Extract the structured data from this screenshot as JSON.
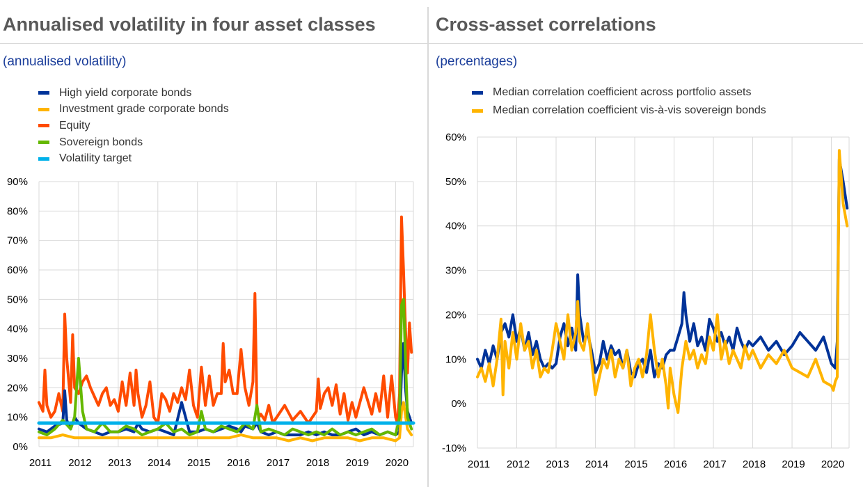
{
  "colors": {
    "high_yield": "#003399",
    "investment_grade": "#ffb400",
    "equity": "#ff4b00",
    "sovereign": "#65b800",
    "target": "#00b1ea",
    "median_across": "#003399",
    "median_vs_sovereign": "#ffb400",
    "grid": "#d9d9d9"
  },
  "chart_data": [
    {
      "type": "line",
      "title": "Annualised volatility in four asset classes",
      "subtitle": "(annualised volatility)",
      "xlabel": "",
      "ylabel": "",
      "xlim": [
        2011.0,
        2020.45
      ],
      "ylim": [
        0,
        90
      ],
      "x_ticks": [
        "2011",
        "2012",
        "2013",
        "2014",
        "2015",
        "2016",
        "2017",
        "2018",
        "2019",
        "2020"
      ],
      "y_ticks": [
        "0%",
        "10%",
        "20%",
        "30%",
        "40%",
        "50%",
        "60%",
        "70%",
        "80%",
        "90%"
      ],
      "grid": true,
      "legend_position": "top-left",
      "legend": [
        "High yield corporate bonds",
        "Investment grade corporate bonds",
        "Equity",
        "Sovereign bonds",
        "Volatility target"
      ],
      "series": [
        {
          "name": "Equity",
          "x": [
            2011.0,
            2011.1,
            2011.15,
            2011.2,
            2011.3,
            2011.4,
            2011.5,
            2011.6,
            2011.65,
            2011.7,
            2011.8,
            2011.85,
            2011.9,
            2012.0,
            2012.1,
            2012.2,
            2012.3,
            2012.4,
            2012.5,
            2012.6,
            2012.7,
            2012.8,
            2012.9,
            2013.0,
            2013.1,
            2013.2,
            2013.3,
            2013.4,
            2013.45,
            2013.5,
            2013.6,
            2013.7,
            2013.8,
            2013.9,
            2014.0,
            2014.1,
            2014.2,
            2014.3,
            2014.4,
            2014.5,
            2014.6,
            2014.7,
            2014.8,
            2014.9,
            2015.0,
            2015.1,
            2015.2,
            2015.3,
            2015.4,
            2015.5,
            2015.6,
            2015.65,
            2015.7,
            2015.8,
            2015.9,
            2016.0,
            2016.1,
            2016.2,
            2016.3,
            2016.4,
            2016.45,
            2016.5,
            2016.55,
            2016.6,
            2016.7,
            2016.8,
            2016.9,
            2017.0,
            2017.2,
            2017.4,
            2017.6,
            2017.8,
            2018.0,
            2018.05,
            2018.1,
            2018.2,
            2018.3,
            2018.4,
            2018.5,
            2018.6,
            2018.7,
            2018.8,
            2018.9,
            2019.0,
            2019.2,
            2019.4,
            2019.5,
            2019.6,
            2019.7,
            2019.8,
            2019.9,
            2020.0,
            2020.05,
            2020.1,
            2020.15,
            2020.2,
            2020.25,
            2020.3,
            2020.35,
            2020.4
          ],
          "values": [
            15,
            12,
            26,
            14,
            10,
            12,
            18,
            12,
            45,
            30,
            15,
            38,
            20,
            18,
            22,
            24,
            20,
            17,
            14,
            18,
            20,
            14,
            16,
            12,
            22,
            14,
            25,
            14,
            26,
            18,
            10,
            14,
            22,
            10,
            8,
            18,
            16,
            12,
            18,
            15,
            20,
            16,
            26,
            14,
            10,
            27,
            14,
            24,
            14,
            18,
            18,
            35,
            22,
            26,
            18,
            18,
            33,
            20,
            14,
            22,
            52,
            14,
            10,
            11,
            9,
            14,
            8,
            10,
            14,
            9,
            12,
            8,
            12,
            23,
            13,
            18,
            20,
            14,
            21,
            11,
            18,
            9,
            15,
            10,
            20,
            11,
            18,
            12,
            24,
            10,
            24,
            10,
            8,
            18,
            78,
            60,
            40,
            25,
            42,
            32
          ]
        },
        {
          "name": "High yield corporate bonds",
          "x": [
            2011.0,
            2011.2,
            2011.4,
            2011.6,
            2011.65,
            2011.7,
            2011.8,
            2011.9,
            2012.0,
            2012.2,
            2012.4,
            2012.6,
            2012.8,
            2013.0,
            2013.2,
            2013.4,
            2013.5,
            2013.6,
            2013.8,
            2014.0,
            2014.2,
            2014.4,
            2014.6,
            2014.8,
            2015.0,
            2015.2,
            2015.4,
            2015.6,
            2015.8,
            2016.0,
            2016.1,
            2016.2,
            2016.4,
            2016.5,
            2016.6,
            2016.8,
            2017.0,
            2017.2,
            2017.4,
            2017.6,
            2017.8,
            2018.0,
            2018.2,
            2018.4,
            2018.6,
            2018.8,
            2019.0,
            2019.2,
            2019.4,
            2019.6,
            2019.8,
            2020.0,
            2020.1,
            2020.15,
            2020.2,
            2020.25,
            2020.3,
            2020.4
          ],
          "values": [
            6,
            5,
            7,
            8,
            19,
            9,
            6,
            10,
            8,
            6,
            5,
            4,
            5,
            5,
            6,
            5,
            8,
            6,
            5,
            6,
            5,
            4,
            15,
            5,
            5,
            6,
            5,
            6,
            7,
            6,
            5,
            7,
            6,
            8,
            5,
            4,
            5,
            4,
            4,
            4,
            5,
            4,
            5,
            4,
            4,
            5,
            6,
            4,
            5,
            4,
            5,
            4,
            5,
            25,
            35,
            20,
            12,
            8
          ]
        },
        {
          "name": "Investment grade corporate bonds",
          "x": [
            2011.0,
            2011.3,
            2011.6,
            2011.9,
            2012.2,
            2012.5,
            2012.8,
            2013.1,
            2013.4,
            2013.7,
            2014.0,
            2014.3,
            2014.6,
            2014.9,
            2015.2,
            2015.5,
            2015.8,
            2016.1,
            2016.4,
            2016.7,
            2017.0,
            2017.3,
            2017.6,
            2017.9,
            2018.2,
            2018.5,
            2018.8,
            2019.1,
            2019.4,
            2019.7,
            2020.0,
            2020.1,
            2020.15,
            2020.2,
            2020.3,
            2020.4
          ],
          "values": [
            3,
            3,
            4,
            3,
            3,
            3,
            3,
            3,
            3,
            3,
            3,
            3,
            3,
            3,
            3,
            3,
            3,
            4,
            3,
            3,
            3,
            2,
            3,
            2,
            3,
            3,
            3,
            2,
            3,
            3,
            2,
            3,
            12,
            15,
            6,
            4
          ]
        },
        {
          "name": "Sovereign bonds",
          "x": [
            2011.0,
            2011.2,
            2011.4,
            2011.6,
            2011.8,
            2011.9,
            2012.0,
            2012.1,
            2012.2,
            2012.4,
            2012.6,
            2012.8,
            2013.0,
            2013.2,
            2013.4,
            2013.6,
            2013.8,
            2014.0,
            2014.2,
            2014.4,
            2014.6,
            2014.8,
            2015.0,
            2015.1,
            2015.2,
            2015.4,
            2015.6,
            2015.8,
            2016.0,
            2016.2,
            2016.4,
            2016.5,
            2016.6,
            2016.8,
            2017.0,
            2017.2,
            2017.4,
            2017.6,
            2017.8,
            2018.0,
            2018.2,
            2018.4,
            2018.6,
            2018.8,
            2019.0,
            2019.2,
            2019.4,
            2019.6,
            2019.8,
            2020.0,
            2020.1,
            2020.15,
            2020.2,
            2020.25,
            2020.3,
            2020.4
          ],
          "values": [
            5,
            4,
            6,
            9,
            6,
            10,
            30,
            12,
            6,
            5,
            8,
            5,
            5,
            7,
            6,
            4,
            5,
            6,
            8,
            5,
            6,
            4,
            5,
            12,
            6,
            5,
            7,
            6,
            5,
            8,
            6,
            14,
            5,
            6,
            5,
            4,
            6,
            5,
            4,
            5,
            4,
            6,
            4,
            5,
            4,
            5,
            6,
            4,
            5,
            4,
            10,
            48,
            50,
            30,
            10,
            6
          ]
        },
        {
          "name": "Volatility target",
          "x": [
            2011.0,
            2020.45
          ],
          "values": [
            8,
            8
          ]
        }
      ]
    },
    {
      "type": "line",
      "title": "Cross-asset correlations",
      "subtitle": "(percentages)",
      "xlabel": "",
      "ylabel": "",
      "xlim": [
        2011.0,
        2020.45
      ],
      "ylim": [
        -10,
        60
      ],
      "x_ticks": [
        "2011",
        "2012",
        "2013",
        "2014",
        "2015",
        "2016",
        "2017",
        "2018",
        "2019",
        "2020"
      ],
      "y_ticks": [
        "-10%",
        "0%",
        "10%",
        "20%",
        "30%",
        "40%",
        "50%",
        "60%"
      ],
      "grid": true,
      "legend_position": "top-left",
      "legend": [
        "Median correlation coefficient across portfolio assets",
        "Median correlation coefficient vis-à-vis sovereign bonds"
      ],
      "series": [
        {
          "name": "Median correlation coefficient across portfolio assets",
          "x": [
            2011.0,
            2011.1,
            2011.2,
            2011.3,
            2011.4,
            2011.5,
            2011.6,
            2011.7,
            2011.8,
            2011.9,
            2012.0,
            2012.1,
            2012.2,
            2012.3,
            2012.4,
            2012.5,
            2012.6,
            2012.7,
            2012.8,
            2012.9,
            2013.0,
            2013.1,
            2013.2,
            2013.3,
            2013.4,
            2013.5,
            2013.55,
            2013.6,
            2013.7,
            2013.8,
            2013.9,
            2014.0,
            2014.1,
            2014.2,
            2014.3,
            2014.4,
            2014.5,
            2014.6,
            2014.7,
            2014.8,
            2014.9,
            2015.0,
            2015.1,
            2015.2,
            2015.3,
            2015.4,
            2015.5,
            2015.6,
            2015.7,
            2015.8,
            2015.9,
            2016.0,
            2016.1,
            2016.2,
            2016.25,
            2016.3,
            2016.4,
            2016.5,
            2016.6,
            2016.7,
            2016.8,
            2016.9,
            2017.0,
            2017.1,
            2017.2,
            2017.3,
            2017.4,
            2017.5,
            2017.6,
            2017.7,
            2017.8,
            2017.9,
            2018.0,
            2018.2,
            2018.4,
            2018.6,
            2018.8,
            2019.0,
            2019.2,
            2019.4,
            2019.6,
            2019.8,
            2020.0,
            2020.1,
            2020.15,
            2020.2,
            2020.3,
            2020.4
          ],
          "values": [
            10,
            8,
            12,
            9,
            13,
            10,
            16,
            18,
            15,
            20,
            14,
            17,
            12,
            16,
            11,
            14,
            10,
            8,
            9,
            8,
            9,
            15,
            18,
            13,
            17,
            12,
            29,
            20,
            14,
            16,
            12,
            7,
            9,
            14,
            10,
            13,
            11,
            12,
            8,
            12,
            7,
            6,
            9,
            10,
            7,
            12,
            6,
            9,
            8,
            11,
            12,
            12,
            15,
            18,
            25,
            20,
            14,
            18,
            13,
            15,
            12,
            19,
            17,
            14,
            16,
            13,
            15,
            12,
            17,
            14,
            12,
            14,
            13,
            15,
            12,
            14,
            11,
            13,
            16,
            14,
            12,
            15,
            9,
            8,
            14,
            55,
            50,
            44
          ]
        },
        {
          "name": "Median correlation coefficient vis-à-vis sovereign bonds",
          "x": [
            2011.0,
            2011.1,
            2011.2,
            2011.3,
            2011.4,
            2011.5,
            2011.6,
            2011.65,
            2011.7,
            2011.8,
            2011.9,
            2012.0,
            2012.1,
            2012.2,
            2012.3,
            2012.4,
            2012.5,
            2012.6,
            2012.7,
            2012.8,
            2012.9,
            2013.0,
            2013.1,
            2013.2,
            2013.3,
            2013.4,
            2013.5,
            2013.55,
            2013.6,
            2013.7,
            2013.8,
            2013.9,
            2014.0,
            2014.1,
            2014.2,
            2014.3,
            2014.4,
            2014.5,
            2014.6,
            2014.7,
            2014.8,
            2014.9,
            2015.0,
            2015.1,
            2015.2,
            2015.3,
            2015.4,
            2015.5,
            2015.6,
            2015.7,
            2015.8,
            2015.85,
            2015.9,
            2016.0,
            2016.1,
            2016.2,
            2016.3,
            2016.4,
            2016.5,
            2016.6,
            2016.7,
            2016.8,
            2016.9,
            2017.0,
            2017.1,
            2017.2,
            2017.3,
            2017.4,
            2017.5,
            2017.6,
            2017.7,
            2017.8,
            2017.9,
            2018.0,
            2018.2,
            2018.4,
            2018.6,
            2018.8,
            2019.0,
            2019.2,
            2019.4,
            2019.6,
            2019.8,
            2020.0,
            2020.05,
            2020.1,
            2020.15,
            2020.2,
            2020.3,
            2020.4
          ],
          "values": [
            6,
            8,
            5,
            9,
            4,
            10,
            19,
            2,
            14,
            8,
            16,
            10,
            18,
            12,
            14,
            8,
            12,
            6,
            8,
            7,
            12,
            18,
            14,
            10,
            20,
            12,
            16,
            23,
            14,
            12,
            18,
            10,
            2,
            6,
            10,
            8,
            12,
            6,
            10,
            8,
            12,
            4,
            8,
            10,
            6,
            11,
            20,
            12,
            6,
            10,
            4,
            -1,
            8,
            2,
            -2,
            8,
            14,
            10,
            12,
            8,
            11,
            9,
            15,
            12,
            20,
            10,
            14,
            9,
            12,
            10,
            8,
            13,
            10,
            12,
            8,
            11,
            9,
            12,
            8,
            7,
            6,
            10,
            5,
            4,
            3,
            5,
            6,
            57,
            45,
            40
          ]
        }
      ]
    }
  ]
}
